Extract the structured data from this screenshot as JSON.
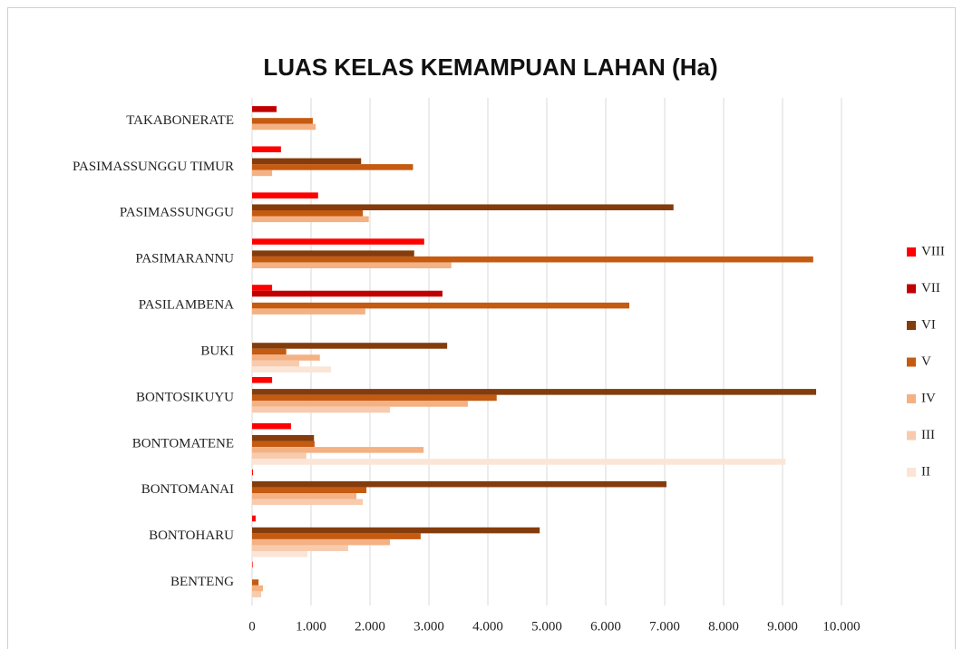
{
  "chart_data": {
    "type": "hbar",
    "title": "LUAS KELAS KEMAMPUAN LAHAN (Ha)",
    "categories": [
      "BENTENG",
      "BONTOHARU",
      "BONTOMANAI",
      "BONTOMATENE",
      "BONTOSIKUYU",
      "BUKI",
      "PASILAMBENA",
      "PASIMARANNU",
      "PASIMASSUNGGU",
      "PASIMASSUNGGU TIMUR",
      "TAKABONERATE"
    ],
    "series": [
      {
        "name": "VIII",
        "color": "#ff0000",
        "values": [
          10,
          60,
          15,
          660,
          340,
          0,
          340,
          2920,
          1120,
          490,
          0
        ]
      },
      {
        "name": "VII",
        "color": "#c00000",
        "values": [
          0,
          0,
          0,
          0,
          0,
          0,
          3230,
          0,
          0,
          0,
          415
        ]
      },
      {
        "name": "VI",
        "color": "#843c0c",
        "values": [
          0,
          4880,
          7030,
          1050,
          9570,
          3310,
          0,
          2750,
          7150,
          1850,
          0
        ]
      },
      {
        "name": "V",
        "color": "#c55a11",
        "values": [
          110,
          2860,
          1940,
          1060,
          4150,
          580,
          6400,
          9520,
          1880,
          2730,
          1030
        ]
      },
      {
        "name": "IV",
        "color": "#f4b183",
        "values": [
          185,
          2340,
          1770,
          2910,
          3660,
          1150,
          1920,
          3380,
          1980,
          340,
          1080
        ]
      },
      {
        "name": "III",
        "color": "#f8cbad",
        "values": [
          155,
          1630,
          1880,
          920,
          2340,
          800,
          0,
          0,
          0,
          0,
          0
        ]
      },
      {
        "name": "II",
        "color": "#fbe5d6",
        "values": [
          0,
          940,
          0,
          9050,
          0,
          1340,
          0,
          0,
          0,
          0,
          0
        ]
      }
    ],
    "xlim": [
      0,
      10000
    ],
    "xticks": [
      0,
      {
        "value": 1000,
        "label": "1.000"
      },
      {
        "value": 2000,
        "label": "2.000"
      },
      {
        "value": 3000,
        "label": "3.000"
      },
      {
        "value": 4000,
        "label": "4.000"
      },
      {
        "value": 5000,
        "label": "5.000"
      },
      {
        "value": 6000,
        "label": "6.000"
      },
      {
        "value": 7000,
        "label": "7.000"
      },
      {
        "value": 8000,
        "label": "8.000"
      },
      {
        "value": 9000,
        "label": "9.000"
      },
      {
        "value": 10000,
        "label": "10.000"
      }
    ],
    "grid": true,
    "legend": "right"
  }
}
